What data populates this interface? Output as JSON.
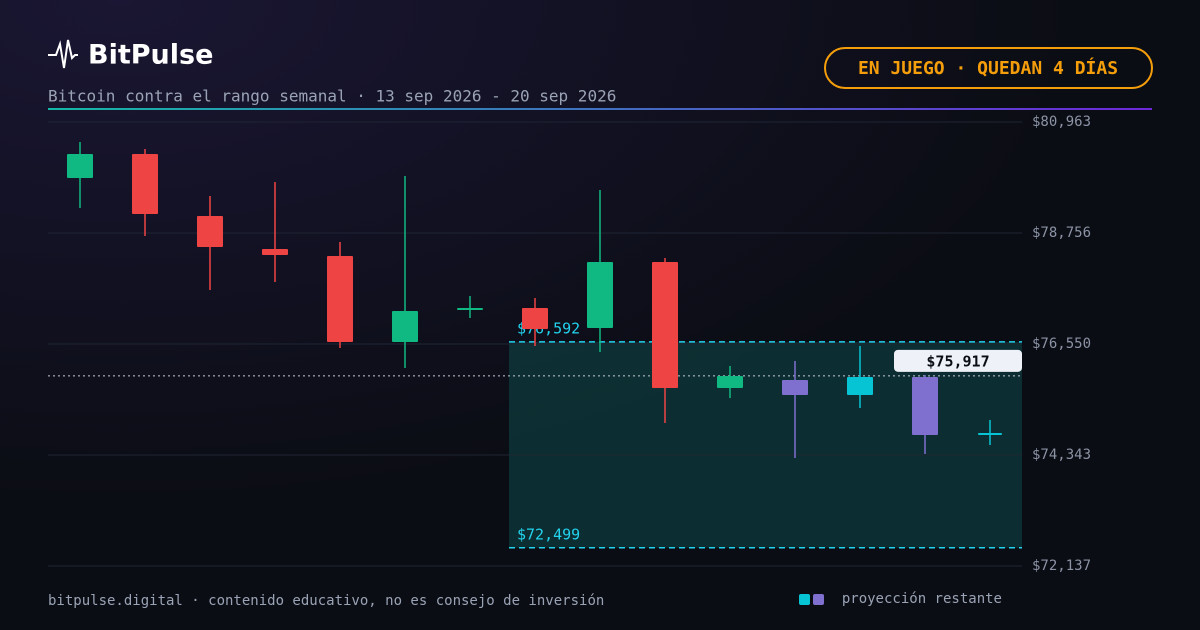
{
  "chart_data": {
    "type": "candlestick",
    "title": "BitPulse",
    "subtitle": "Bitcoin contra el rango semanal · 13 sep 2026 - 20 sep 2026",
    "badge": "EN JUEGO · QUEDAN 4 DÍAS",
    "footer": "bitpulse.digital · contenido educativo, no es consejo de inversión",
    "legend": {
      "label": "proyección restante",
      "colors": [
        "#06c4d4",
        "#7f6fcf"
      ]
    },
    "ylim": [
      72137,
      80963
    ],
    "yticks": [
      {
        "value": 80963,
        "label": "$80,963"
      },
      {
        "value": 78756,
        "label": "$78,756"
      },
      {
        "value": 76550,
        "label": "$76,550"
      },
      {
        "value": 74343,
        "label": "$74,343"
      },
      {
        "value": 72137,
        "label": "$72,137"
      }
    ],
    "grid": true,
    "open": [
      79850,
      80327,
      79094,
      78438,
      78299,
      76590,
      77246,
      77266,
      76868,
      78180,
      75675,
      75834,
      75536,
      75894,
      74781
    ],
    "high": [
      80565,
      80426,
      79492,
      79770,
      78578,
      79890,
      77504,
      77464,
      79611,
      78260,
      76113,
      76212,
      76510,
      75934,
      75039
    ],
    "low": [
      79253,
      78697,
      77623,
      77782,
      76471,
      76073,
      77067,
      76510,
      76391,
      74980,
      75476,
      74284,
      75278,
      74364,
      74542
    ],
    "close": [
      80327,
      79134,
      78478,
      78319,
      76590,
      77206,
      77266,
      76848,
      78180,
      75675,
      75914,
      75536,
      75894,
      74741,
      74781
    ],
    "colors": [
      "#10b981",
      "#ef4444",
      "#ef4444",
      "#ef4444",
      "#ef4444",
      "#10b981",
      "#10b981",
      "#ef4444",
      "#10b981",
      "#ef4444",
      "#10b981",
      "#7f6fcf",
      "#06c4d4",
      "#7f6fcf",
      "#06c4d4"
    ],
    "range": {
      "values": [
        76592,
        72499
      ],
      "value_labels": [
        "$76,592",
        "$72,499"
      ]
    },
    "current": {
      "value": 75917,
      "label": "$75,917"
    }
  }
}
